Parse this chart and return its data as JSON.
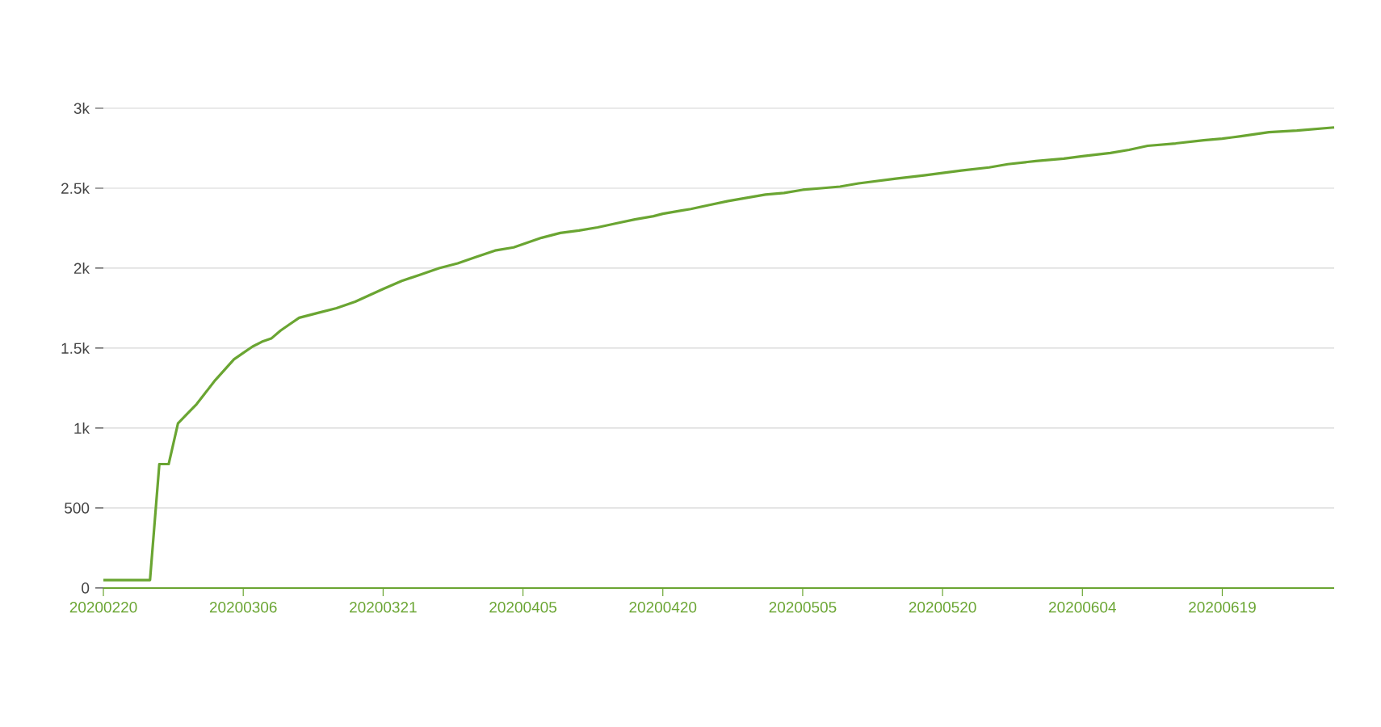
{
  "chart_data": {
    "type": "line",
    "x": [
      "2020-02-20",
      "2020-02-25",
      "2020-02-26",
      "2020-02-27",
      "2020-02-28",
      "2020-03-01",
      "2020-03-03",
      "2020-03-05",
      "2020-03-06",
      "2020-03-07",
      "2020-03-08",
      "2020-03-09",
      "2020-03-10",
      "2020-03-11",
      "2020-03-12",
      "2020-03-14",
      "2020-03-16",
      "2020-03-18",
      "2020-03-21",
      "2020-03-23",
      "2020-03-25",
      "2020-03-27",
      "2020-03-29",
      "2020-03-31",
      "2020-04-02",
      "2020-04-04",
      "2020-04-05",
      "2020-04-07",
      "2020-04-09",
      "2020-04-11",
      "2020-04-13",
      "2020-04-15",
      "2020-04-17",
      "2020-04-19",
      "2020-04-20",
      "2020-04-22",
      "2020-04-23",
      "2020-04-25",
      "2020-04-27",
      "2020-04-29",
      "2020-05-01",
      "2020-05-03",
      "2020-05-05",
      "2020-05-07",
      "2020-05-09",
      "2020-05-11",
      "2020-05-13",
      "2020-05-15",
      "2020-05-18",
      "2020-05-20",
      "2020-05-22",
      "2020-05-25",
      "2020-05-27",
      "2020-05-30",
      "2020-06-02",
      "2020-06-04",
      "2020-06-07",
      "2020-06-09",
      "2020-06-11",
      "2020-06-14",
      "2020-06-17",
      "2020-06-19",
      "2020-06-21",
      "2020-06-24",
      "2020-06-27",
      "2020-07-01"
    ],
    "series": [
      {
        "color": "#6aa532",
        "values": [
          50,
          50,
          775,
          775,
          1030,
          1150,
          1300,
          1430,
          1470,
          1510,
          1540,
          1560,
          1610,
          1650,
          1690,
          1720,
          1750,
          1790,
          1870,
          1920,
          1960,
          2000,
          2030,
          2070,
          2110,
          2130,
          2150,
          2190,
          2220,
          2235,
          2255,
          2280,
          2305,
          2325,
          2340,
          2360,
          2370,
          2395,
          2420,
          2440,
          2460,
          2470,
          2490,
          2500,
          2510,
          2530,
          2545,
          2560,
          2580,
          2595,
          2610,
          2630,
          2650,
          2670,
          2685,
          2700,
          2720,
          2740,
          2765,
          2780,
          2800,
          2810,
          2825,
          2850,
          2860,
          2880
        ]
      }
    ],
    "xlim": [
      "2020-02-20",
      "2020-07-01"
    ],
    "xticks": [
      {
        "value": "2020-02-20",
        "label": "20200220"
      },
      {
        "value": "2020-03-06",
        "label": "20200306"
      },
      {
        "value": "2020-03-21",
        "label": "20200321"
      },
      {
        "value": "2020-04-05",
        "label": "20200405"
      },
      {
        "value": "2020-04-20",
        "label": "20200420"
      },
      {
        "value": "2020-05-05",
        "label": "20200505"
      },
      {
        "value": "2020-05-20",
        "label": "20200520"
      },
      {
        "value": "2020-06-04",
        "label": "20200604"
      },
      {
        "value": "2020-06-19",
        "label": "20200619"
      }
    ],
    "ylim": [
      0,
      3000
    ],
    "yticks": [
      0,
      500,
      {
        "value": 1000,
        "label": "1k"
      },
      {
        "value": 1500,
        "label": "1.5k"
      },
      {
        "value": 2000,
        "label": "2k"
      },
      {
        "value": 2500,
        "label": "2.5k"
      },
      {
        "value": 3000,
        "label": "3k"
      }
    ],
    "grid": "y"
  }
}
